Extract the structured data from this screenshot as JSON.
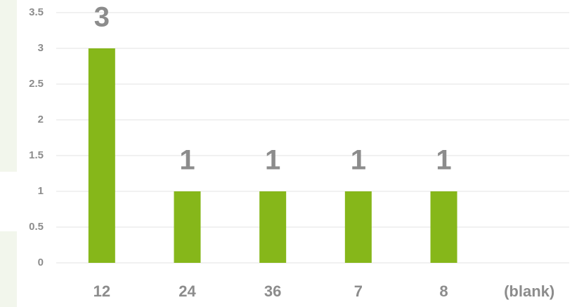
{
  "chart_data": {
    "type": "bar",
    "categories": [
      "12",
      "24",
      "36",
      "7",
      "8",
      "(blank)"
    ],
    "values": [
      3,
      1,
      1,
      1,
      1,
      null
    ],
    "color": "#86b71a",
    "ylim": [
      0,
      3.5
    ],
    "yticks": [
      0,
      0.5,
      1,
      1.5,
      2,
      2.5,
      3,
      3.5
    ],
    "grid": true,
    "data_labels": true
  }
}
